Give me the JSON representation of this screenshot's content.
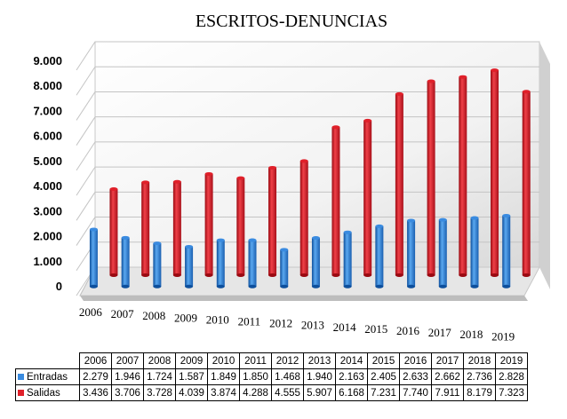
{
  "chart_data": {
    "type": "bar",
    "title": "ESCRITOS-DENUNCIAS",
    "categories": [
      "2006",
      "2007",
      "2008",
      "2009",
      "2010",
      "2011",
      "2012",
      "2013",
      "2014",
      "2015",
      "2016",
      "2017",
      "2018",
      "2019"
    ],
    "y_tick_labels": [
      "9.000",
      "8.000",
      "7.000",
      "6.000",
      "5.000",
      "4.000",
      "3.000",
      "2.000",
      "1.000",
      "0"
    ],
    "ylim": [
      0,
      9000
    ],
    "grid": true,
    "series": [
      {
        "name": "Entradas",
        "color": "#3a8be0",
        "values": [
          2279,
          1946,
          1724,
          1587,
          1849,
          1850,
          1468,
          1940,
          2163,
          2405,
          2633,
          2662,
          2736,
          2828
        ],
        "labels": [
          "2.279",
          "1.946",
          "1.724",
          "1.587",
          "1.849",
          "1.850",
          "1.468",
          "1.940",
          "2.163",
          "2.405",
          "2.633",
          "2.662",
          "2.736",
          "2.828"
        ]
      },
      {
        "name": "Salidas",
        "color": "#e0202a",
        "values": [
          3436,
          3706,
          3728,
          4039,
          3874,
          4288,
          4555,
          5907,
          6168,
          7231,
          7740,
          7911,
          8179,
          7323
        ],
        "labels": [
          "3.436",
          "3.706",
          "3.728",
          "4.039",
          "3.874",
          "4.288",
          "4.555",
          "5.907",
          "6.168",
          "7.231",
          "7.740",
          "7.911",
          "8.179",
          "7.323"
        ]
      }
    ]
  }
}
